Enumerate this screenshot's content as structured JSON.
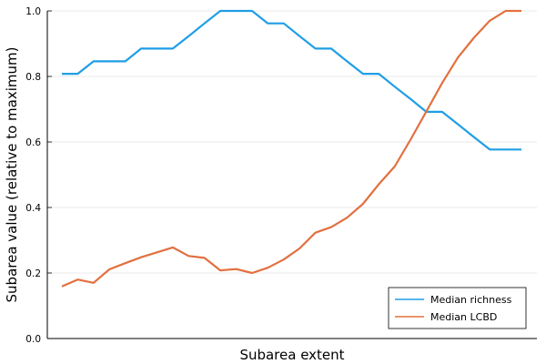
{
  "chart_data": {
    "type": "line",
    "title": "",
    "xlabel": "Subarea extent",
    "ylabel": "Subarea value (relative to maximum)",
    "ylim": [
      0.0,
      1.0
    ],
    "yticks": [
      "0.0",
      "0.2",
      "0.4",
      "0.6",
      "0.8",
      "1.0"
    ],
    "xticks": [],
    "grid": true,
    "legend_position": "bottom-right",
    "x": [
      1,
      2,
      3,
      4,
      5,
      6,
      7,
      8,
      9,
      10,
      11,
      12,
      13,
      14,
      15,
      16,
      17,
      18,
      19,
      20,
      21,
      22,
      23,
      24,
      25,
      26,
      27,
      28,
      29,
      30
    ],
    "series": [
      {
        "name": "Median richness",
        "color": "#1f9ee5",
        "values": [
          0.808,
          0.808,
          0.846,
          0.846,
          0.846,
          0.885,
          0.885,
          0.885,
          0.923,
          0.962,
          1.0,
          1.0,
          1.0,
          0.962,
          0.962,
          0.923,
          0.885,
          0.885,
          0.846,
          0.808,
          0.808,
          0.769,
          0.731,
          0.692,
          0.692,
          0.654,
          0.615,
          0.577,
          0.577,
          0.577
        ]
      },
      {
        "name": "Median LCBD",
        "color": "#e2703f",
        "values": [
          0.159,
          0.18,
          0.17,
          0.211,
          0.23,
          0.248,
          0.263,
          0.278,
          0.252,
          0.246,
          0.208,
          0.212,
          0.2,
          0.216,
          0.241,
          0.275,
          0.323,
          0.34,
          0.369,
          0.411,
          0.471,
          0.525,
          0.607,
          0.693,
          0.78,
          0.858,
          0.918,
          0.97,
          1.0,
          1.0
        ]
      }
    ]
  }
}
